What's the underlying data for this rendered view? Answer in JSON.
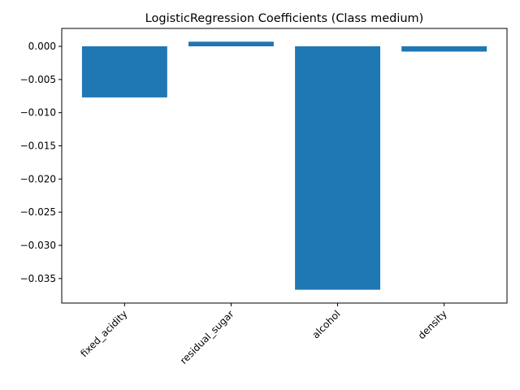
{
  "chart_data": {
    "type": "bar",
    "title": "LogisticRegression Coefficients (Class medium)",
    "xlabel": "",
    "ylabel": "",
    "categories": [
      "fixed_acidity",
      "residual_sugar",
      "alcohol",
      "density"
    ],
    "values": [
      -0.0077,
      0.0007,
      -0.0367,
      -0.0008
    ],
    "ylim": [
      -0.0387,
      0.0027
    ],
    "yticks": [
      0.0,
      -0.005,
      -0.01,
      -0.015,
      -0.02,
      -0.025,
      -0.03,
      -0.035
    ],
    "ytick_labels": [
      "0.000",
      "−0.005",
      "−0.010",
      "−0.015",
      "−0.020",
      "−0.025",
      "−0.030",
      "−0.035"
    ],
    "x_tick_rotation_deg": 45,
    "grid": false,
    "legend": "none",
    "bar_color": "#1f77b4"
  }
}
